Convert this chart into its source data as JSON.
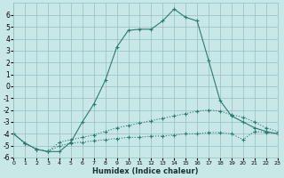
{
  "xlabel": "Humidex (Indice chaleur)",
  "bg_color": "#c8e8e8",
  "grid_color": "#96bebe",
  "line_color": "#2d7a6e",
  "xlim": [
    0,
    23
  ],
  "ylim": [
    -6,
    7
  ],
  "xticks": [
    0,
    1,
    2,
    3,
    4,
    5,
    6,
    7,
    8,
    9,
    10,
    11,
    12,
    13,
    14,
    15,
    16,
    17,
    18,
    19,
    20,
    21,
    22,
    23
  ],
  "yticks": [
    -6,
    -5,
    -4,
    -3,
    -2,
    -1,
    0,
    1,
    2,
    3,
    4,
    5,
    6
  ],
  "series1_x": [
    0,
    1,
    2,
    3,
    4,
    5,
    6,
    7,
    8,
    9,
    10,
    11,
    12,
    13,
    14,
    15,
    16,
    17,
    18,
    19,
    20,
    21,
    22,
    23
  ],
  "series1_y": [
    -4.0,
    -4.8,
    -5.3,
    -5.5,
    -5.5,
    -4.7,
    -3.0,
    -1.5,
    0.5,
    3.3,
    4.7,
    4.8,
    4.8,
    5.5,
    6.5,
    5.8,
    5.5,
    2.2,
    -1.2,
    -2.5,
    -3.0,
    -3.5,
    -3.8,
    -4.0
  ],
  "series2_x": [
    0,
    1,
    2,
    3,
    4,
    5,
    6,
    7,
    8,
    9,
    10,
    11,
    12,
    13,
    14,
    15,
    16,
    17,
    18,
    19,
    20,
    21,
    22,
    23
  ],
  "series2_y": [
    -4.0,
    -4.8,
    -5.3,
    -5.5,
    -4.7,
    -4.5,
    -4.3,
    -4.1,
    -3.8,
    -3.5,
    -3.3,
    -3.1,
    -2.9,
    -2.7,
    -2.5,
    -2.3,
    -2.1,
    -2.0,
    -2.1,
    -2.4,
    -2.6,
    -3.0,
    -3.5,
    -3.8
  ],
  "series3_x": [
    0,
    1,
    2,
    3,
    4,
    5,
    6,
    7,
    8,
    9,
    10,
    11,
    12,
    13,
    14,
    15,
    16,
    17,
    18,
    19,
    20,
    21,
    22,
    23
  ],
  "series3_y": [
    -4.0,
    -4.8,
    -5.3,
    -5.5,
    -5.0,
    -4.8,
    -4.7,
    -4.6,
    -4.5,
    -4.4,
    -4.3,
    -4.3,
    -4.2,
    -4.2,
    -4.1,
    -4.0,
    -4.0,
    -3.9,
    -3.9,
    -4.0,
    -4.5,
    -3.8,
    -3.9,
    -4.0
  ]
}
